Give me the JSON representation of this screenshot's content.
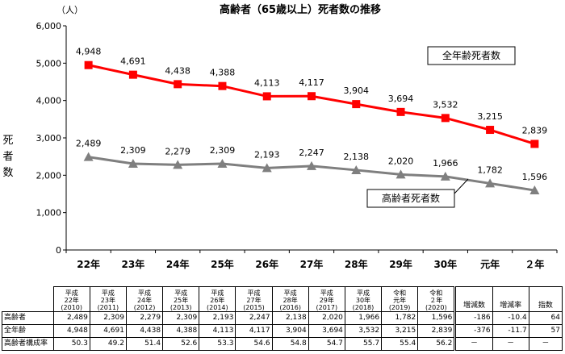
{
  "chart_data": {
    "type": "line",
    "title": "高齢者（65歳以上）死者数の推移",
    "y_unit": "（人）",
    "ylabel": "死者数",
    "ylim": [
      0,
      6000
    ],
    "yticks": [
      "0",
      "1,000",
      "2,000",
      "3,000",
      "4,000",
      "5,000",
      "6,000"
    ],
    "categories": [
      "22年",
      "23年",
      "24年",
      "25年",
      "26年",
      "27年",
      "28年",
      "29年",
      "30年",
      "元年",
      "２年"
    ],
    "series": [
      {
        "name": "全年齢死者数",
        "color": "#ff0000",
        "marker": "square",
        "values": [
          4948,
          4691,
          4438,
          4388,
          4113,
          4117,
          3904,
          3694,
          3532,
          3215,
          2839
        ],
        "labels": [
          "4,948",
          "4,691",
          "4,438",
          "4,388",
          "4,113",
          "4,117",
          "3,904",
          "3,694",
          "3,532",
          "3,215",
          "2,839"
        ]
      },
      {
        "name": "高齢者死者数",
        "color": "#7f7f7f",
        "marker": "triangle",
        "values": [
          2489,
          2309,
          2279,
          2309,
          2193,
          2247,
          2138,
          2020,
          1966,
          1782,
          1596
        ],
        "labels": [
          "2,489",
          "2,309",
          "2,279",
          "2,309",
          "2,193",
          "2,247",
          "2,138",
          "2,020",
          "1,966",
          "1,782",
          "1,596"
        ]
      }
    ],
    "grid": false
  },
  "table": {
    "year_headers": [
      [
        "平成",
        "22年",
        "(2010)"
      ],
      [
        "平成",
        "23年",
        "(2011)"
      ],
      [
        "平成",
        "24年",
        "(2012)"
      ],
      [
        "平成",
        "25年",
        "(2013)"
      ],
      [
        "平成",
        "26年",
        "(2014)"
      ],
      [
        "平成",
        "27年",
        "(2015)"
      ],
      [
        "平成",
        "28年",
        "(2016)"
      ],
      [
        "平成",
        "29年",
        "(2017)"
      ],
      [
        "平成",
        "30年",
        "(2018)"
      ],
      [
        "令和",
        "元年",
        "(2019)"
      ],
      [
        "令和",
        "２年",
        "(2020)"
      ]
    ],
    "extra_headers": [
      "増減数",
      "増減率",
      "指数"
    ],
    "rows": [
      {
        "label": "高齢者",
        "values": [
          "2,489",
          "2,309",
          "2,279",
          "2,309",
          "2,193",
          "2,247",
          "2,138",
          "2,020",
          "1,966",
          "1,782",
          "1,596"
        ],
        "extra": [
          "-186",
          "-10.4",
          "64"
        ]
      },
      {
        "label": "全年齢",
        "values": [
          "4,948",
          "4,691",
          "4,438",
          "4,388",
          "4,113",
          "4,117",
          "3,904",
          "3,694",
          "3,532",
          "3,215",
          "2,839"
        ],
        "extra": [
          "-376",
          "-11.7",
          "57"
        ]
      },
      {
        "label": "高齢者構成率",
        "values": [
          "50.3",
          "49.2",
          "51.4",
          "52.6",
          "53.3",
          "54.6",
          "54.8",
          "54.7",
          "55.7",
          "55.4",
          "56.2"
        ],
        "extra": [
          "－",
          "－",
          "－"
        ]
      }
    ]
  }
}
